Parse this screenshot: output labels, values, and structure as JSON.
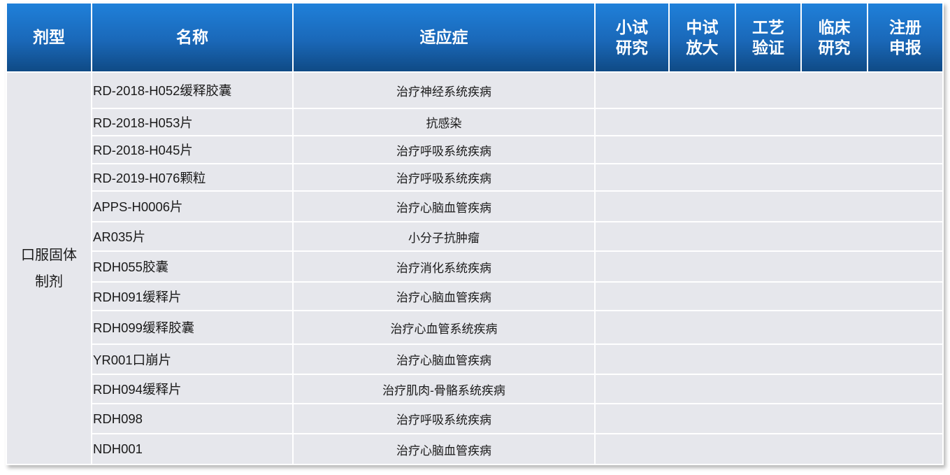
{
  "header": {
    "dosage_form": "剂型",
    "name": "名称",
    "indication": "适应症",
    "stages": [
      {
        "line1": "小试",
        "line2": "研究"
      },
      {
        "line1": "中试",
        "line2": "放大"
      },
      {
        "line1": "工艺",
        "line2": "验证"
      },
      {
        "line1": "临床",
        "line2": "研究"
      },
      {
        "line1": "注册",
        "line2": "申报"
      }
    ]
  },
  "dosage_form": {
    "line1": "口服固体",
    "line2": "制剂"
  },
  "rows": [
    {
      "name": "RD-2018-H052缓释胶囊",
      "indication": "治疗神经系统疾病"
    },
    {
      "name": "RD-2018-H053片",
      "indication": "抗感染"
    },
    {
      "name": "RD-2018-H045片",
      "indication": "治疗呼吸系统疾病"
    },
    {
      "name": "RD-2019-H076颗粒",
      "indication": "治疗呼吸系统疾病"
    },
    {
      "name": "APPS-H0006片",
      "indication": "治疗心脑血管疾病"
    },
    {
      "name": "AR035片",
      "indication": "小分子抗肿瘤"
    },
    {
      "name": "RDH055胶囊",
      "indication": "治疗消化系统疾病"
    },
    {
      "name": "RDH091缓释片",
      "indication": "治疗心脑血管疾病"
    },
    {
      "name": "RDH099缓释胶囊",
      "indication": "治疗心血管系统疾病"
    },
    {
      "name": "YR001口崩片",
      "indication": "治疗心脑血管疾病"
    },
    {
      "name": "RDH094缓释片",
      "indication": "治疗肌肉-骨骼系统疾病"
    },
    {
      "name": "RDH098",
      "indication": "治疗呼吸系统疾病"
    },
    {
      "name": "NDH001",
      "indication": "治疗心脑血管疾病"
    }
  ],
  "colors": {
    "header_top": "#1f80da",
    "header_bottom": "#0f4a85",
    "cell_bg": "#e6e7ec"
  }
}
